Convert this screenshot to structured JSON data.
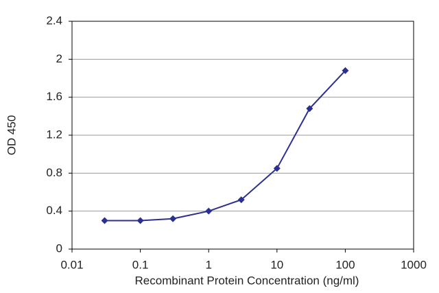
{
  "chart_data": {
    "type": "line",
    "xlabel": "Recombinant Protein Concentration (ng/ml)",
    "ylabel": "OD 450",
    "xscale": "log",
    "grid": true,
    "x": [
      0.03,
      0.1,
      0.3,
      1,
      3,
      10,
      30,
      100
    ],
    "series": [
      {
        "color": "#2b2f8f",
        "values": [
          0.3,
          0.3,
          0.32,
          0.4,
          0.52,
          0.85,
          1.48,
          1.88
        ]
      }
    ],
    "xlim": [
      0.01,
      1000
    ],
    "xticks": [
      0.01,
      0.1,
      1,
      10,
      100,
      1000
    ],
    "ylim": [
      0,
      2.4
    ],
    "yticks": [
      0,
      0.4,
      0.8,
      1.2,
      1.6,
      2,
      2.4
    ]
  }
}
